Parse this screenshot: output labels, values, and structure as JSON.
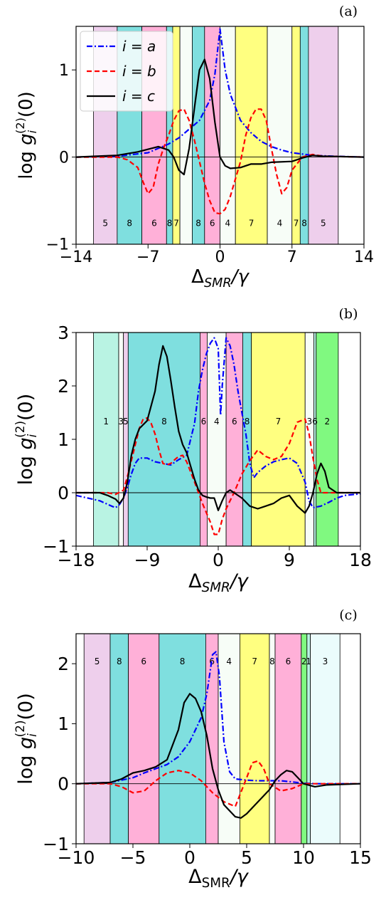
{
  "chart_data": [
    {
      "type": "line",
      "panel_label": "(a)",
      "xlabel": "Δ_SMR/γ",
      "ylabel": "log g_i^(2)(0)",
      "xlim": [
        -14,
        14
      ],
      "ylim": [
        -1,
        1.5
      ],
      "xticks": [
        -14,
        -7,
        0,
        7,
        14
      ],
      "yticks": [
        -1,
        0,
        1
      ],
      "legend": {
        "placement": "top-left",
        "entries": [
          "i = a",
          "i = b",
          "i = c"
        ]
      },
      "bands": [
        {
          "from": -12.3,
          "to": -10.0,
          "color": "#eecfec",
          "label": "5"
        },
        {
          "from": -10.0,
          "to": -7.6,
          "color": "#7fdfdf",
          "label": "8"
        },
        {
          "from": -7.6,
          "to": -5.2,
          "color": "#ffb0d8",
          "label": "6"
        },
        {
          "from": -5.2,
          "to": -4.6,
          "color": "#7fdfdf",
          "label": "8"
        },
        {
          "from": -4.6,
          "to": -3.9,
          "color": "#ffff80",
          "label": "7"
        },
        {
          "from": -3.9,
          "to": -2.7,
          "color": "#f7fdf7",
          "label": ""
        },
        {
          "from": -2.7,
          "to": -1.5,
          "color": "#7fdfdf",
          "label": "8"
        },
        {
          "from": -1.5,
          "to": 0.0,
          "color": "#ffb0d8",
          "label": "6"
        },
        {
          "from": 0.0,
          "to": 1.5,
          "color": "#f7fdf7",
          "label": "4"
        },
        {
          "from": 1.5,
          "to": 4.6,
          "color": "#ffff80",
          "label": "7"
        },
        {
          "from": 4.6,
          "to": 7.0,
          "color": "#f7fdf7",
          "label": "4"
        },
        {
          "from": 7.0,
          "to": 7.8,
          "color": "#ffff80",
          "label": "7"
        },
        {
          "from": 7.8,
          "to": 8.6,
          "color": "#7fdfdf",
          "label": "8"
        },
        {
          "from": 8.6,
          "to": 11.5,
          "color": "#eecfec",
          "label": "5"
        }
      ],
      "band_label_y": -0.75,
      "series": [
        {
          "name": "i = a",
          "color": "#0000ff",
          "dash": "8,3,2,3",
          "x": [
            -14,
            -10,
            -7,
            -5,
            -4,
            -3,
            -2,
            -1,
            -0.5,
            0,
            0.5,
            1,
            2,
            3,
            4,
            5,
            6,
            7,
            9,
            11,
            14
          ],
          "y": [
            0,
            0.01,
            0.05,
            0.15,
            0.22,
            0.32,
            0.42,
            0.65,
            0.95,
            1.47,
            1.0,
            0.72,
            0.42,
            0.28,
            0.18,
            0.12,
            0.08,
            0.05,
            0.02,
            0.01,
            0
          ]
        },
        {
          "name": "i = b",
          "color": "#ff0000",
          "dash": "7,4",
          "x": [
            -14,
            -10,
            -9,
            -8,
            -7.5,
            -7,
            -6.5,
            -6,
            -5.5,
            -5,
            -4.5,
            -4,
            -3.5,
            -3,
            -2.5,
            -2,
            -1.5,
            -1,
            -0.5,
            0,
            0.5,
            1,
            2,
            2.5,
            3,
            3.5,
            4,
            4.5,
            5,
            5.5,
            6,
            6.5,
            7,
            8,
            9,
            10,
            14
          ],
          "y": [
            0,
            0,
            -0.03,
            -0.12,
            -0.28,
            -0.42,
            -0.35,
            -0.08,
            0.1,
            0.25,
            0.42,
            0.53,
            0.55,
            0.42,
            0.2,
            -0.05,
            -0.3,
            -0.5,
            -0.64,
            -0.65,
            -0.6,
            -0.45,
            -0.05,
            0.25,
            0.45,
            0.55,
            0.55,
            0.42,
            0.1,
            -0.2,
            -0.42,
            -0.35,
            -0.15,
            0,
            0.03,
            0.01,
            0
          ]
        },
        {
          "name": "i = c",
          "color": "#000000",
          "dash": "",
          "x": [
            -14,
            -10,
            -8,
            -6,
            -5,
            -4.5,
            -4,
            -3.5,
            -3,
            -2.5,
            -2,
            -1.5,
            -1,
            -0.5,
            0,
            0.5,
            1,
            2,
            3,
            4,
            5,
            7,
            8,
            9,
            10,
            14
          ],
          "y": [
            0,
            0.02,
            0.06,
            0.12,
            0.08,
            0,
            -0.15,
            -0.2,
            0.1,
            0.55,
            1.0,
            1.12,
            0.9,
            0.4,
            0,
            -0.1,
            -0.13,
            -0.12,
            -0.08,
            -0.08,
            -0.06,
            -0.05,
            -0.01,
            0.02,
            0.01,
            0
          ]
        }
      ]
    },
    {
      "type": "line",
      "panel_label": "(b)",
      "xlabel": "Δ_SMR/γ",
      "ylabel": "log g_i^(2)(0)",
      "xlim": [
        -18,
        18
      ],
      "ylim": [
        -1,
        3
      ],
      "xticks": [
        -18,
        -9,
        0,
        9,
        18
      ],
      "yticks": [
        -1,
        0,
        1,
        2,
        3
      ],
      "bands": [
        {
          "from": -15.8,
          "to": -12.6,
          "color": "#b9f3e3",
          "label": "1"
        },
        {
          "from": -12.6,
          "to": -12.0,
          "color": "#f7fdf7",
          "label": "3"
        },
        {
          "from": -12.0,
          "to": -11.4,
          "color": "#eecfec",
          "label": "5"
        },
        {
          "from": -11.4,
          "to": -2.3,
          "color": "#7fdfdf",
          "label": "8"
        },
        {
          "from": -2.3,
          "to": -1.4,
          "color": "#ffb0d8",
          "label": "6"
        },
        {
          "from": -1.4,
          "to": 1.0,
          "color": "#f7fdf7",
          "label": "4"
        },
        {
          "from": 1.0,
          "to": 3.1,
          "color": "#ffb0d8",
          "label": "6"
        },
        {
          "from": 3.1,
          "to": 4.2,
          "color": "#7fdfdf",
          "label": "8"
        },
        {
          "from": 4.2,
          "to": 11.0,
          "color": "#ffff80",
          "label": "7"
        },
        {
          "from": 11.0,
          "to": 12.1,
          "color": "#f7fdf7",
          "label": "3"
        },
        {
          "from": 12.1,
          "to": 12.4,
          "color": "#b9f3e3",
          "label": "6"
        },
        {
          "from": 12.4,
          "to": 15.2,
          "color": "#80f980",
          "label": "2"
        }
      ],
      "band_label_y": 1.35,
      "series": [
        {
          "name": "i = a",
          "color": "#0000ff",
          "dash": "8,3,2,3",
          "x": [
            -18,
            -15,
            -13.5,
            -13,
            -12.5,
            -12,
            -11.5,
            -11,
            -10.5,
            -10,
            -9,
            -8,
            -7,
            -6,
            -5,
            -4,
            -3,
            -2.5,
            -2,
            -1.5,
            -1,
            -0.5,
            0,
            0.3,
            0.5,
            1,
            1.5,
            2,
            2.5,
            3,
            3.5,
            4,
            4.5,
            5,
            6,
            7,
            8,
            9,
            10,
            11,
            11.5,
            12,
            13,
            14,
            15,
            16,
            18
          ],
          "y": [
            -0.05,
            -0.15,
            -0.25,
            -0.28,
            -0.22,
            -0.1,
            0.1,
            0.35,
            0.55,
            0.65,
            0.65,
            0.58,
            0.55,
            0.52,
            0.62,
            0.7,
            1.3,
            1.9,
            2.3,
            2.6,
            2.8,
            2.9,
            2.7,
            1.45,
            2.0,
            2.9,
            2.75,
            2.4,
            1.9,
            1.5,
            1.1,
            0.55,
            0.28,
            0.38,
            0.5,
            0.58,
            0.62,
            0.65,
            0.55,
            0.2,
            -0.15,
            -0.28,
            -0.25,
            -0.18,
            -0.1,
            -0.05,
            -0.02
          ]
        },
        {
          "name": "i = b",
          "color": "#ff0000",
          "dash": "7,4",
          "x": [
            -18,
            -15,
            -14,
            -13,
            -12,
            -11.5,
            -11,
            -10.5,
            -10,
            -9.5,
            -9,
            -8.5,
            -8,
            -7.5,
            -7,
            -6.5,
            -6,
            -5.5,
            -5,
            -4.5,
            -4,
            -3,
            -2,
            -1,
            -0.5,
            0,
            0.5,
            1,
            2,
            3,
            4,
            5,
            6,
            7,
            8,
            9,
            10,
            11,
            11.5,
            12,
            12.5,
            13,
            14,
            15,
            18
          ],
          "y": [
            0,
            0,
            0,
            -0.03,
            0.05,
            0.3,
            0.6,
            0.9,
            1.2,
            1.38,
            1.4,
            1.3,
            1.1,
            0.8,
            0.55,
            0.52,
            0.55,
            0.62,
            0.68,
            0.7,
            0.58,
            0.2,
            -0.2,
            -0.55,
            -0.78,
            -0.78,
            -0.5,
            -0.3,
            0,
            0.35,
            0.6,
            0.8,
            0.68,
            0.62,
            0.68,
            0.92,
            1.32,
            1.38,
            1.1,
            0.65,
            0.25,
            0,
            0,
            0,
            0
          ]
        },
        {
          "name": "i = c",
          "color": "#000000",
          "dash": "",
          "x": [
            -18,
            -15,
            -14,
            -13,
            -12.5,
            -12,
            -11.5,
            -11,
            -10.5,
            -10,
            -9,
            -8,
            -7.5,
            -7,
            -6.5,
            -6,
            -5.5,
            -5,
            -4.5,
            -4,
            -3.5,
            -3,
            -2.5,
            -2,
            -1.5,
            -1,
            -0.5,
            0,
            0.5,
            1,
            1.5,
            2,
            3,
            4,
            5,
            6,
            7,
            8,
            9,
            10,
            11,
            11.5,
            12,
            12.5,
            13,
            13.5,
            14,
            15,
            16,
            18
          ],
          "y": [
            0,
            0,
            -0.05,
            -0.12,
            -0.2,
            -0.1,
            0.2,
            0.7,
            1.0,
            1.2,
            1.35,
            1.9,
            2.4,
            2.75,
            2.55,
            2.1,
            1.6,
            1.15,
            0.9,
            0.75,
            0.5,
            0.25,
            0.05,
            -0.05,
            -0.08,
            -0.1,
            -0.1,
            -0.33,
            -0.15,
            0,
            0.05,
            0,
            -0.1,
            -0.25,
            -0.3,
            -0.25,
            -0.2,
            -0.1,
            -0.05,
            -0.25,
            -0.38,
            -0.25,
            0,
            0.35,
            0.55,
            0.4,
            0.1,
            0,
            0,
            0
          ]
        }
      ]
    },
    {
      "type": "line",
      "panel_label": "(c)",
      "xlabel": "Δ_SMR/γ",
      "ylabel": "log g_i^(2)(0)",
      "xlim": [
        -10,
        15
      ],
      "ylim": [
        -1,
        2.5
      ],
      "xticks": [
        -10,
        -5,
        0,
        5,
        10,
        15
      ],
      "yticks": [
        -1,
        0,
        1,
        2
      ],
      "bands": [
        {
          "from": -9.3,
          "to": -7.0,
          "color": "#eecfec",
          "label": "5"
        },
        {
          "from": -7.0,
          "to": -5.4,
          "color": "#7fdfdf",
          "label": "8"
        },
        {
          "from": -5.4,
          "to": -2.7,
          "color": "#ffb0d8",
          "label": "6"
        },
        {
          "from": -2.7,
          "to": 1.4,
          "color": "#7fdfdf",
          "label": "8"
        },
        {
          "from": 1.4,
          "to": 2.5,
          "color": "#ffb0d8",
          "label": "6"
        },
        {
          "from": 2.5,
          "to": 4.4,
          "color": "#f7fdf7",
          "label": "4"
        },
        {
          "from": 4.4,
          "to": 7.0,
          "color": "#ffff80",
          "label": "7"
        },
        {
          "from": 7.0,
          "to": 7.5,
          "color": "#f7fdf7",
          "label": "8"
        },
        {
          "from": 7.5,
          "to": 9.8,
          "color": "#ffb0d8",
          "label": "6"
        },
        {
          "from": 9.8,
          "to": 10.3,
          "color": "#80f980",
          "label": "2"
        },
        {
          "from": 10.3,
          "to": 10.6,
          "color": "#b9f3e3",
          "label": "1"
        },
        {
          "from": 10.6,
          "to": 13.2,
          "color": "#ebfcfc",
          "label": "3"
        }
      ],
      "band_label_y": 2.05,
      "series": [
        {
          "name": "i = a",
          "color": "#0000ff",
          "dash": "8,3,2,3",
          "x": [
            -10,
            -7,
            -5,
            -4,
            -3,
            -2,
            -1,
            0,
            1,
            1.5,
            2,
            2.3,
            2.6,
            3,
            3.5,
            4,
            5,
            6,
            7,
            8,
            9,
            10,
            11,
            12,
            15
          ],
          "y": [
            0,
            0.02,
            0.1,
            0.18,
            0.25,
            0.32,
            0.45,
            0.7,
            1.1,
            1.5,
            2.15,
            2.2,
            1.8,
            0.7,
            0.2,
            0.08,
            0.06,
            0.05,
            0.05,
            0.05,
            0.03,
            0.01,
            0,
            0,
            0
          ]
        },
        {
          "name": "i = b",
          "color": "#ff0000",
          "dash": "7,4",
          "x": [
            -10,
            -7,
            -6,
            -5,
            -4,
            -3,
            -2,
            -1,
            0,
            1,
            2,
            3,
            4,
            5,
            5.5,
            6,
            6.5,
            7,
            8,
            9,
            10,
            11,
            15
          ],
          "y": [
            0,
            0,
            -0.05,
            -0.15,
            -0.12,
            0.05,
            0.18,
            0.22,
            0.18,
            0.05,
            -0.15,
            -0.3,
            -0.38,
            0.1,
            0.35,
            0.38,
            0.25,
            0,
            -0.12,
            -0.08,
            0,
            0,
            0
          ]
        },
        {
          "name": "i = c",
          "color": "#000000",
          "dash": "",
          "x": [
            -10,
            -7,
            -6,
            -5,
            -4,
            -3,
            -2,
            -1,
            -0.5,
            0,
            0.5,
            1,
            1.5,
            2,
            2.5,
            3,
            4,
            4.5,
            5,
            6,
            7,
            7.5,
            8,
            8.5,
            9,
            9.5,
            10,
            11,
            12,
            15
          ],
          "y": [
            0,
            0.02,
            0.08,
            0.18,
            0.22,
            0.28,
            0.4,
            0.9,
            1.35,
            1.5,
            1.42,
            1.2,
            0.8,
            0.25,
            -0.1,
            -0.35,
            -0.55,
            -0.57,
            -0.5,
            -0.3,
            -0.1,
            0.05,
            0.15,
            0.22,
            0.2,
            0.1,
            0,
            -0.05,
            -0.02,
            0
          ]
        }
      ]
    }
  ]
}
